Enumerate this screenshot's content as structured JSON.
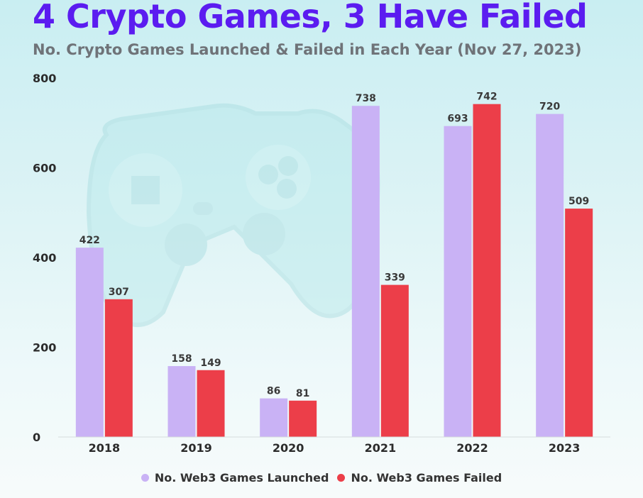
{
  "chart_data": {
    "type": "bar",
    "title": "4 Crypto Games, 3 Have Failed",
    "subtitle": "No. Crypto Games Launched & Failed in Each Year (Nov 27, 2023)",
    "categories": [
      "2018",
      "2019",
      "2020",
      "2021",
      "2022",
      "2023"
    ],
    "series": [
      {
        "name": "No. Web3 Games Launched",
        "color": "#c9b2f5",
        "values": [
          422,
          158,
          86,
          738,
          693,
          720
        ]
      },
      {
        "name": "No. Web3 Games Failed",
        "color": "#ec3e49",
        "values": [
          307,
          149,
          81,
          339,
          742,
          509
        ]
      }
    ],
    "ylim": [
      0,
      800
    ],
    "yticks": [
      0,
      200,
      400,
      600,
      800
    ],
    "xlabel": "",
    "ylabel": "",
    "grid": false,
    "legend_position": "bottom"
  }
}
